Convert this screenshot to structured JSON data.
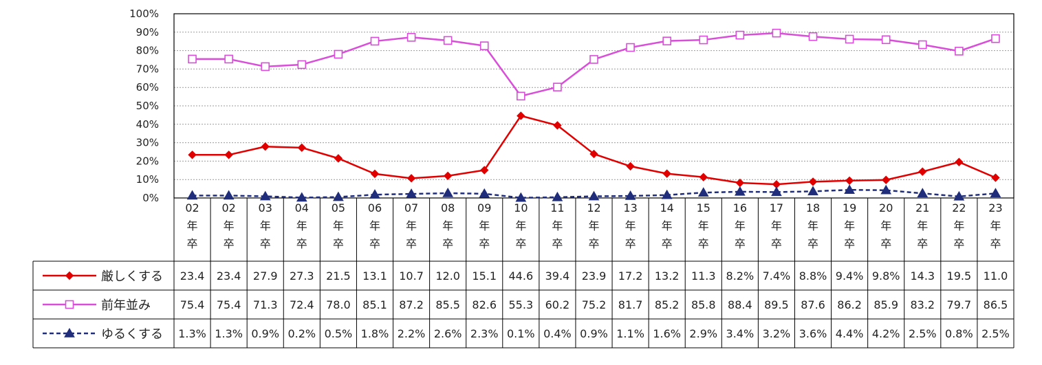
{
  "chart_data": {
    "type": "line",
    "title": "",
    "xlabel": "",
    "ylabel": "",
    "ylim": [
      0,
      100
    ],
    "y_ticks": [
      "0%",
      "10%",
      "20%",
      "30%",
      "40%",
      "50%",
      "60%",
      "70%",
      "80%",
      "90%",
      "100%"
    ],
    "grid": "horizontal dotted",
    "legend_placement": "data-table-left",
    "categories": [
      [
        "02",
        "年",
        "卒"
      ],
      [
        "02",
        "年",
        "卒"
      ],
      [
        "03",
        "年",
        "卒"
      ],
      [
        "04",
        "年",
        "卒"
      ],
      [
        "05",
        "年",
        "卒"
      ],
      [
        "06",
        "年",
        "卒"
      ],
      [
        "07",
        "年",
        "卒"
      ],
      [
        "08",
        "年",
        "卒"
      ],
      [
        "09",
        "年",
        "卒"
      ],
      [
        "10",
        "年",
        "卒"
      ],
      [
        "11",
        "年",
        "卒"
      ],
      [
        "12",
        "年",
        "卒"
      ],
      [
        "13",
        "年",
        "卒"
      ],
      [
        "14",
        "年",
        "卒"
      ],
      [
        "15",
        "年",
        "卒"
      ],
      [
        "16",
        "年",
        "卒"
      ],
      [
        "17",
        "年",
        "卒"
      ],
      [
        "18",
        "年",
        "卒"
      ],
      [
        "19",
        "年",
        "卒"
      ],
      [
        "20",
        "年",
        "卒"
      ],
      [
        "21",
        "年",
        "卒"
      ],
      [
        "22",
        "年",
        "卒"
      ],
      [
        "23",
        "年",
        "卒"
      ]
    ],
    "series": [
      {
        "name": "厳しくする",
        "color": "#e00000",
        "marker": "diamond",
        "line_style": "solid",
        "values": [
          23.4,
          23.4,
          27.9,
          27.3,
          21.5,
          13.1,
          10.7,
          12.0,
          15.1,
          44.6,
          39.4,
          23.9,
          17.2,
          13.2,
          11.3,
          8.2,
          7.4,
          8.8,
          9.4,
          9.8,
          14.3,
          19.5,
          11.0
        ],
        "labels": [
          "23.4",
          "23.4",
          "27.9",
          "27.3",
          "21.5",
          "13.1",
          "10.7",
          "12.0",
          "15.1",
          "44.6",
          "39.4",
          "23.9",
          "17.2",
          "13.2",
          "11.3",
          "8.2%",
          "7.4%",
          "8.8%",
          "9.4%",
          "9.8%",
          "14.3",
          "19.5",
          "11.0"
        ]
      },
      {
        "name": "前年並み",
        "color": "#d84ed8",
        "marker": "square-open",
        "line_style": "solid",
        "values": [
          75.4,
          75.4,
          71.3,
          72.4,
          78.0,
          85.1,
          87.2,
          85.5,
          82.6,
          55.3,
          60.2,
          75.2,
          81.7,
          85.2,
          85.8,
          88.4,
          89.5,
          87.6,
          86.2,
          85.9,
          83.2,
          79.7,
          86.5
        ],
        "labels": [
          "75.4",
          "75.4",
          "71.3",
          "72.4",
          "78.0",
          "85.1",
          "87.2",
          "85.5",
          "82.6",
          "55.3",
          "60.2",
          "75.2",
          "81.7",
          "85.2",
          "85.8",
          "88.4",
          "89.5",
          "87.6",
          "86.2",
          "85.9",
          "83.2",
          "79.7",
          "86.5"
        ]
      },
      {
        "name": "ゆるくする",
        "color": "#1f2d7a",
        "marker": "triangle",
        "line_style": "dashed",
        "values": [
          1.3,
          1.3,
          0.9,
          0.2,
          0.5,
          1.8,
          2.2,
          2.6,
          2.3,
          0.1,
          0.4,
          0.9,
          1.1,
          1.6,
          2.9,
          3.4,
          3.2,
          3.6,
          4.4,
          4.2,
          2.5,
          0.8,
          2.5
        ],
        "labels": [
          "1.3%",
          "1.3%",
          "0.9%",
          "0.2%",
          "0.5%",
          "1.8%",
          "2.2%",
          "2.6%",
          "2.3%",
          "0.1%",
          "0.4%",
          "0.9%",
          "1.1%",
          "1.6%",
          "2.9%",
          "3.4%",
          "3.2%",
          "3.6%",
          "4.4%",
          "4.2%",
          "2.5%",
          "0.8%",
          "2.5%"
        ]
      }
    ]
  }
}
